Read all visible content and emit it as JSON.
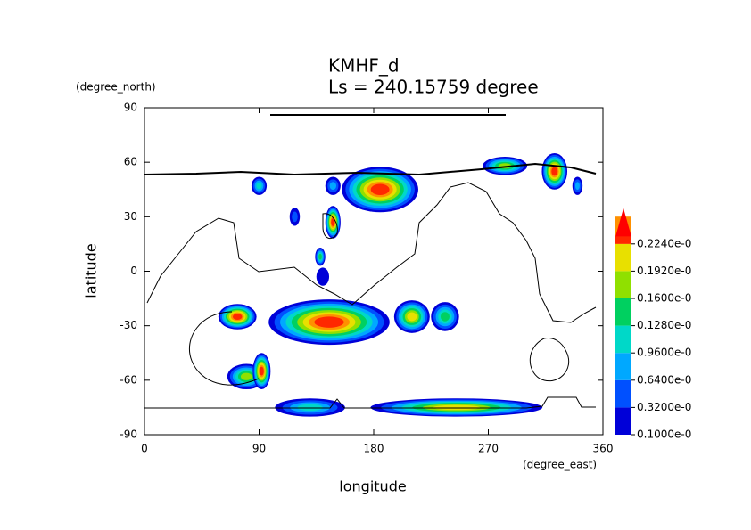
{
  "chart_data": {
    "type": "contour",
    "title": [
      "KMHF_d",
      "Ls = 240.15759 degree"
    ],
    "ylabel": "latitude",
    "xlabel": "longitude",
    "yunits": "(degree_north)",
    "xunits": "(degree_east)",
    "xlim": [
      0,
      360
    ],
    "ylim": [
      -90,
      90
    ],
    "xticks": [
      0,
      90,
      180,
      270,
      360
    ],
    "yticks": [
      -90,
      -60,
      -30,
      0,
      30,
      60,
      90
    ],
    "levels": [
      {
        "value": 0.1,
        "label": "0.1000e-0"
      },
      {
        "value": 0.32,
        "label": "0.3200e-0"
      },
      {
        "value": 0.64,
        "label": "0.6400e-0"
      },
      {
        "value": 0.96,
        "label": "0.9600e-0"
      },
      {
        "value": 0.128,
        "label": "0.1280e-0"
      },
      {
        "value": 0.16,
        "label": "0.1600e-0"
      },
      {
        "value": 0.192,
        "label": "0.1920e-0"
      },
      {
        "value": 0.224,
        "label": "0.2240e-0"
      }
    ],
    "colors": [
      "#0000d8",
      "#0050ff",
      "#00a8ff",
      "#00d8c8",
      "#00d060",
      "#90e000",
      "#e8e000",
      "#ff9000",
      "#ff2800"
    ],
    "overflow_color": "#ff0000",
    "features": [
      {
        "lon": 90,
        "lat": 47,
        "dlon": 12,
        "dlat": 10,
        "peak": 3
      },
      {
        "lon": 118,
        "lat": 30,
        "dlon": 8,
        "dlat": 10,
        "peak": 1
      },
      {
        "lon": 148,
        "lat": 47,
        "dlon": 12,
        "dlat": 10,
        "peak": 2
      },
      {
        "lon": 148,
        "lat": 27,
        "dlon": 12,
        "dlat": 18,
        "peak": 8
      },
      {
        "lon": 138,
        "lat": 8,
        "dlon": 8,
        "dlat": 10,
        "peak": 4
      },
      {
        "lon": 140,
        "lat": -3,
        "dlon": 10,
        "dlat": 10,
        "peak": 0
      },
      {
        "lon": 185,
        "lat": 45,
        "dlon": 60,
        "dlat": 25,
        "peak": 8
      },
      {
        "lon": 283,
        "lat": 58,
        "dlon": 35,
        "dlat": 10,
        "peak": 5
      },
      {
        "lon": 322,
        "lat": 55,
        "dlon": 20,
        "dlat": 20,
        "peak": 8
      },
      {
        "lon": 340,
        "lat": 47,
        "dlon": 8,
        "dlat": 10,
        "peak": 2
      },
      {
        "lon": 73,
        "lat": -25,
        "dlon": 30,
        "dlat": 14,
        "peak": 8
      },
      {
        "lon": 145,
        "lat": -28,
        "dlon": 95,
        "dlat": 25,
        "peak": 8
      },
      {
        "lon": 210,
        "lat": -25,
        "dlon": 28,
        "dlat": 18,
        "peak": 6
      },
      {
        "lon": 236,
        "lat": -25,
        "dlon": 22,
        "dlat": 16,
        "peak": 4
      },
      {
        "lon": 80,
        "lat": -58,
        "dlon": 30,
        "dlat": 14,
        "peak": 5
      },
      {
        "lon": 92,
        "lat": -55,
        "dlon": 14,
        "dlat": 20,
        "peak": 8
      },
      {
        "lon": 130,
        "lat": -75,
        "dlon": 55,
        "dlat": 10,
        "peak": 3
      },
      {
        "lon": 245,
        "lat": -75,
        "dlon": 135,
        "dlat": 10,
        "peak": 6
      }
    ]
  }
}
